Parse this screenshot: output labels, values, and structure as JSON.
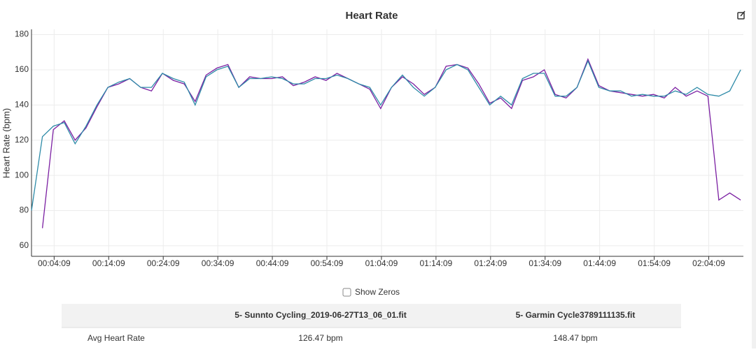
{
  "chart_data": {
    "type": "line",
    "title": "Heart Rate",
    "y_label": "Heart Rate (bpm)",
    "x": [
      0,
      120,
      240,
      360,
      480,
      600,
      720,
      840,
      960,
      1080,
      1200,
      1320,
      1440,
      1560,
      1680,
      1800,
      1920,
      2040,
      2160,
      2280,
      2400,
      2520,
      2640,
      2760,
      2880,
      3000,
      3120,
      3240,
      3360,
      3480,
      3600,
      3720,
      3840,
      3960,
      4080,
      4200,
      4320,
      4440,
      4560,
      4680,
      4800,
      4920,
      5040,
      5160,
      5280,
      5400,
      5520,
      5640,
      5760,
      5880,
      6000,
      6120,
      6240,
      6360,
      6480,
      6600,
      6720,
      6840,
      6960,
      7080,
      7200,
      7320,
      7440,
      7560,
      7680,
      7800
    ],
    "series": [
      {
        "color": "#7b1fa2",
        "values": [
          null,
          70,
          126,
          131,
          120,
          127,
          139,
          150,
          152,
          155,
          150,
          148,
          158,
          154,
          152,
          142,
          157,
          161,
          163,
          150,
          156,
          155,
          155,
          156,
          151,
          153,
          156,
          154,
          158,
          155,
          152,
          149,
          138,
          150,
          156,
          152,
          146,
          150,
          162,
          163,
          161,
          152,
          141,
          144,
          138,
          154,
          156,
          160,
          146,
          144,
          150,
          166,
          151,
          148,
          147,
          146,
          145,
          146,
          144,
          150,
          145,
          148,
          145,
          86,
          90,
          86
        ]
      },
      {
        "color": "#2e8ba8",
        "values": [
          80,
          122,
          128,
          130,
          118,
          128,
          140,
          150,
          153,
          155,
          150,
          150,
          158,
          155,
          153,
          140,
          156,
          160,
          162,
          150,
          155,
          155,
          156,
          155,
          152,
          152,
          155,
          155,
          157,
          155,
          152,
          150,
          140,
          150,
          157,
          150,
          145,
          150,
          160,
          163,
          160,
          150,
          140,
          145,
          140,
          155,
          158,
          158,
          145,
          145,
          150,
          165,
          150,
          148,
          148,
          145,
          146,
          145,
          145,
          148,
          146,
          150,
          146,
          145,
          148,
          160
        ]
      }
    ],
    "xlim": [
      0,
      7830
    ],
    "xticks": [
      {
        "value": 249,
        "label": "00:04:09"
      },
      {
        "value": 849,
        "label": "00:14:09"
      },
      {
        "value": 1449,
        "label": "00:24:09"
      },
      {
        "value": 2049,
        "label": "00:34:09"
      },
      {
        "value": 2649,
        "label": "00:44:09"
      },
      {
        "value": 3249,
        "label": "00:54:09"
      },
      {
        "value": 3849,
        "label": "01:04:09"
      },
      {
        "value": 4449,
        "label": "01:14:09"
      },
      {
        "value": 5049,
        "label": "01:24:09"
      },
      {
        "value": 5649,
        "label": "01:34:09"
      },
      {
        "value": 6249,
        "label": "01:44:09"
      },
      {
        "value": 6849,
        "label": "01:54:09"
      },
      {
        "value": 7449,
        "label": "02:04:09"
      }
    ],
    "ylim": [
      54,
      183
    ],
    "yticks": [
      60,
      80,
      100,
      120,
      140,
      160,
      180
    ],
    "grid": true
  },
  "controls": {
    "show_zeros": "Show Zeros"
  },
  "table": {
    "columns": [
      "5- Sunnto Cycling_2019-06-27T13_06_01.fit",
      "5- Garmin Cycle3789111135.fit"
    ],
    "rows": [
      {
        "label": "Avg Heart Rate",
        "values": [
          "126.47 bpm",
          "148.47 bpm"
        ]
      }
    ]
  }
}
